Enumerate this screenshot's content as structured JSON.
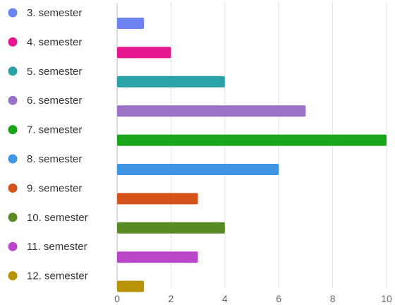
{
  "chart_data": {
    "type": "bar",
    "orientation": "horizontal",
    "categories": [
      "3. semester",
      "4. semester",
      "5. semester",
      "6. semester",
      "7. semester",
      "8. semester",
      "9. semester",
      "10. semester",
      "11. semester",
      "12. semester"
    ],
    "values": [
      1,
      2,
      4,
      7,
      10,
      6,
      3,
      4,
      3,
      1
    ],
    "colors": [
      "#6d83f2",
      "#e8168e",
      "#2aa3a8",
      "#9b72c8",
      "#1aa51a",
      "#4196e4",
      "#d4531a",
      "#5a8a23",
      "#b946c9",
      "#b89207"
    ],
    "xlim": [
      0,
      10
    ],
    "xticks": [
      0,
      2,
      4,
      6,
      8,
      10
    ],
    "grid": true,
    "legend": "left",
    "title": "",
    "xlabel": "",
    "ylabel": ""
  }
}
